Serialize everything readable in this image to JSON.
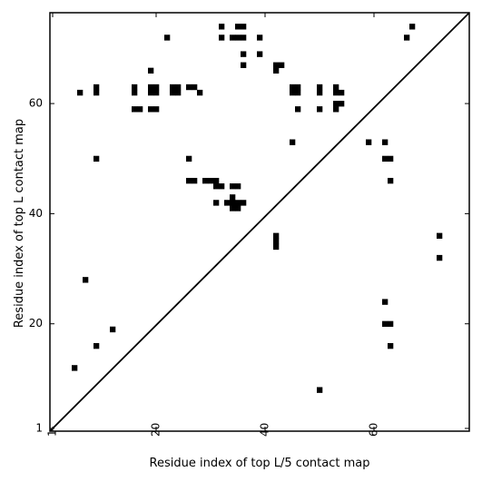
{
  "chart_data": {
    "type": "scatter",
    "title": "",
    "xlabel": "Residue index of top L/5 contact map",
    "ylabel": "Residue index of top L contact map",
    "xlim": [
      0.5,
      77.5
    ],
    "ylim": [
      0.5,
      76.5
    ],
    "x_ticks": [
      1,
      20,
      40,
      60
    ],
    "y_ticks": [
      1,
      20,
      40,
      60
    ],
    "x_tick_labels": [
      "1",
      "20",
      "40",
      "60"
    ],
    "y_tick_labels": [
      "1",
      "20",
      "40",
      "60"
    ],
    "x_tick_label_rotation": 270,
    "diagonal": true,
    "grid": false,
    "color": "#000000",
    "points": [
      [
        5,
        12
      ],
      [
        7,
        28
      ],
      [
        9,
        16
      ],
      [
        9,
        50
      ],
      [
        9,
        62
      ],
      [
        9,
        63
      ],
      [
        12,
        19
      ],
      [
        6,
        62
      ],
      [
        16,
        59
      ],
      [
        17,
        59
      ],
      [
        16,
        62
      ],
      [
        16,
        63
      ],
      [
        19,
        62
      ],
      [
        19,
        63
      ],
      [
        20,
        62
      ],
      [
        20,
        63
      ],
      [
        19,
        66
      ],
      [
        19,
        59
      ],
      [
        20,
        59
      ],
      [
        22,
        72
      ],
      [
        23,
        62
      ],
      [
        23,
        63
      ],
      [
        24,
        62
      ],
      [
        24,
        63
      ],
      [
        26,
        63
      ],
      [
        27,
        63
      ],
      [
        28,
        62
      ],
      [
        26,
        46
      ],
      [
        27,
        46
      ],
      [
        26,
        50
      ],
      [
        29,
        46
      ],
      [
        30,
        46
      ],
      [
        31,
        46
      ],
      [
        31,
        45
      ],
      [
        32,
        45
      ],
      [
        31,
        42
      ],
      [
        32,
        74
      ],
      [
        32,
        72
      ],
      [
        33,
        42
      ],
      [
        34,
        42
      ],
      [
        35,
        42
      ],
      [
        34,
        43
      ],
      [
        34,
        41
      ],
      [
        35,
        41
      ],
      [
        36,
        42
      ],
      [
        34,
        45
      ],
      [
        35,
        45
      ],
      [
        34,
        72
      ],
      [
        35,
        72
      ],
      [
        36,
        72
      ],
      [
        35,
        74
      ],
      [
        36,
        74
      ],
      [
        36,
        69
      ],
      [
        36,
        67
      ],
      [
        39,
        72
      ],
      [
        39,
        69
      ],
      [
        42,
        67
      ],
      [
        43,
        67
      ],
      [
        42,
        66
      ],
      [
        42,
        36
      ],
      [
        42,
        35
      ],
      [
        42,
        34
      ],
      [
        45,
        62
      ],
      [
        45,
        63
      ],
      [
        46,
        62
      ],
      [
        46,
        63
      ],
      [
        45,
        53
      ],
      [
        46,
        59
      ],
      [
        50,
        62
      ],
      [
        50,
        63
      ],
      [
        50,
        59
      ],
      [
        50,
        8
      ],
      [
        53,
        62
      ],
      [
        53,
        63
      ],
      [
        54,
        62
      ],
      [
        53,
        60
      ],
      [
        54,
        60
      ],
      [
        53,
        59
      ],
      [
        59,
        53
      ],
      [
        62,
        53
      ],
      [
        62,
        50
      ],
      [
        63,
        50
      ],
      [
        62,
        24
      ],
      [
        62,
        20
      ],
      [
        63,
        20
      ],
      [
        63,
        16
      ],
      [
        63,
        46
      ],
      [
        66,
        72
      ],
      [
        67,
        74
      ],
      [
        72,
        36
      ],
      [
        72,
        32
      ]
    ]
  }
}
